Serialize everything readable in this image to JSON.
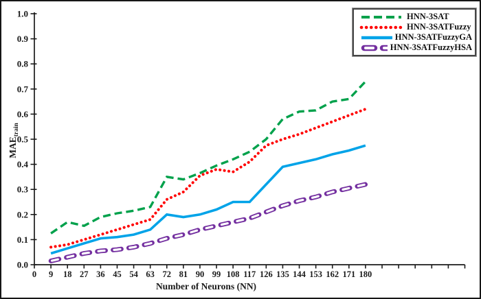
{
  "figure": {
    "background": "#ffffff",
    "frame_color": "#161616",
    "axis_color": "#1a1a1a",
    "text_color": "#1a1a1a"
  },
  "chart_data": {
    "type": "line",
    "title": "",
    "xlabel": "Number of Neurons (NN)",
    "ylabel": "MAE",
    "ylabel_subscript": "train",
    "grid": false,
    "legend_position": "top-right",
    "xlim": [
      0,
      234
    ],
    "ylim": [
      0,
      1
    ],
    "x_tick_step": 9,
    "x": [
      9,
      18,
      27,
      36,
      45,
      54,
      63,
      72,
      81,
      90,
      99,
      108,
      117,
      126,
      135,
      144,
      153,
      162,
      171,
      180
    ],
    "x_tick_labels": [
      "0",
      "9",
      "18",
      "27",
      "36",
      "45",
      "54",
      "63",
      "72",
      "81",
      "90",
      "99",
      "108",
      "117",
      "126",
      "135",
      "144",
      "153",
      "162",
      "171",
      "180"
    ],
    "y_tick_labels": [
      "0.0",
      "0.1",
      "0.2",
      "0.3",
      "0.4",
      "0.5",
      "0.6",
      "0.7",
      "0.8",
      "0.9",
      "1.0"
    ],
    "series": [
      {
        "name": "HNN-3SAT",
        "color": "#00A14B",
        "style": "dashed",
        "values": [
          0.125,
          0.17,
          0.155,
          0.19,
          0.205,
          0.215,
          0.23,
          0.35,
          0.34,
          0.365,
          0.395,
          0.42,
          0.45,
          0.5,
          0.58,
          0.61,
          0.615,
          0.65,
          0.66,
          0.73
        ]
      },
      {
        "name": "HNN-3SATFuzzy",
        "color": "#FF0000",
        "style": "dotted",
        "values": [
          0.07,
          0.08,
          0.1,
          0.12,
          0.14,
          0.16,
          0.18,
          0.26,
          0.29,
          0.355,
          0.38,
          0.37,
          0.41,
          0.475,
          0.5,
          0.52,
          0.545,
          0.57,
          0.595,
          0.62
        ]
      },
      {
        "name": "HNN-3SATFuzzyGA",
        "color": "#00A3E8",
        "style": "solid",
        "values": [
          0.045,
          0.065,
          0.085,
          0.105,
          0.11,
          0.12,
          0.14,
          0.2,
          0.19,
          0.2,
          0.22,
          0.25,
          0.25,
          0.32,
          0.39,
          0.405,
          0.42,
          0.44,
          0.455,
          0.475
        ]
      },
      {
        "name": "HNN-3SATFuzzyHSA",
        "color": "#7430A0",
        "style": "hollow-dash",
        "values": [
          0.015,
          0.03,
          0.045,
          0.055,
          0.06,
          0.07,
          0.085,
          0.105,
          0.12,
          0.14,
          0.155,
          0.17,
          0.185,
          0.21,
          0.235,
          0.255,
          0.27,
          0.29,
          0.305,
          0.32
        ]
      }
    ]
  }
}
